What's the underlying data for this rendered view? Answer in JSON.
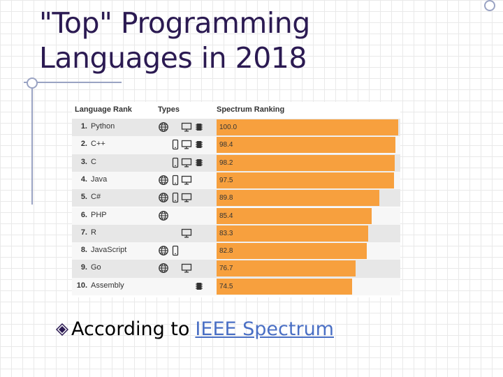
{
  "slide": {
    "title_line1": "\"Top\" Programming",
    "title_line2": "Languages in 2018",
    "bullet_text": "According to",
    "bullet_link": "IEEE Spectrum"
  },
  "colors": {
    "bar": "#f7a03e",
    "title": "#2b1a52",
    "link": "#4a6fc4"
  },
  "chart_data": {
    "type": "bar",
    "orientation": "horizontal",
    "columns": [
      "Language Rank",
      "Types",
      "Spectrum Ranking"
    ],
    "categories": [
      "Python",
      "C++",
      "C",
      "Java",
      "C#",
      "PHP",
      "R",
      "JavaScript",
      "Go",
      "Assembly"
    ],
    "ranks": [
      "1.",
      "2.",
      "3.",
      "4.",
      "5.",
      "6.",
      "7.",
      "8.",
      "9.",
      "10."
    ],
    "values": [
      100.0,
      98.4,
      98.2,
      97.5,
      89.8,
      85.4,
      83.3,
      82.8,
      76.7,
      74.5
    ],
    "value_labels": [
      "100.0",
      "98.4",
      "98.2",
      "97.5",
      "89.8",
      "85.4",
      "83.3",
      "82.8",
      "76.7",
      "74.5"
    ],
    "types": [
      [
        "web-icon",
        "desktop-icon",
        "embedded-icon"
      ],
      [
        "mobile-icon",
        "desktop-icon",
        "embedded-icon"
      ],
      [
        "mobile-icon",
        "desktop-icon",
        "embedded-icon"
      ],
      [
        "web-icon",
        "mobile-icon",
        "desktop-icon"
      ],
      [
        "web-icon",
        "mobile-icon",
        "desktop-icon"
      ],
      [
        "web-icon"
      ],
      [
        "desktop-icon"
      ],
      [
        "web-icon",
        "mobile-icon"
      ],
      [
        "web-icon",
        "desktop-icon"
      ],
      [
        "embedded-icon"
      ]
    ],
    "xlim": [
      0,
      100
    ]
  }
}
